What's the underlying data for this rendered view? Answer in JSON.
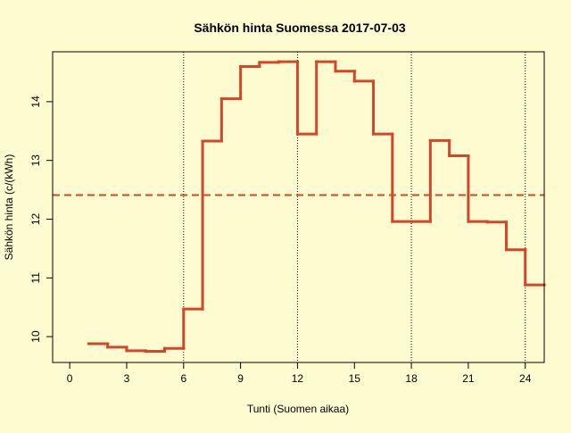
{
  "chart_data": {
    "type": "line",
    "style": "step",
    "title": "Sähkön hinta Suomessa 2017-07-03",
    "xlabel": "Tunti (Suomen aikaa)",
    "ylabel": "Sähkön hinta (c/(kWh)",
    "xlim": [
      -0.9,
      25.0
    ],
    "ylim": [
      9.56,
      14.85
    ],
    "xticks": [
      0,
      3,
      6,
      9,
      12,
      15,
      18,
      21,
      24
    ],
    "yticks": [
      10,
      11,
      12,
      13,
      14
    ],
    "vlines": [
      6,
      12,
      18,
      24
    ],
    "series": [
      {
        "x": [
          1,
          2,
          3,
          4,
          5,
          6,
          7,
          8,
          9,
          10,
          11,
          12,
          13,
          14,
          15,
          16,
          17,
          18,
          19,
          20,
          21,
          22,
          23,
          24
        ],
        "values": [
          9.88,
          9.82,
          9.76,
          9.75,
          9.8,
          10.47,
          13.33,
          14.05,
          14.6,
          14.67,
          14.68,
          13.45,
          14.68,
          14.52,
          14.35,
          13.45,
          11.96,
          11.96,
          13.34,
          13.08,
          11.96,
          11.95,
          11.48,
          10.88
        ],
        "color": "#D2472A"
      }
    ],
    "mean_line": {
      "value": 12.41,
      "color": "#D2472A",
      "style": "dashed"
    },
    "grid": false,
    "legend": "none"
  }
}
